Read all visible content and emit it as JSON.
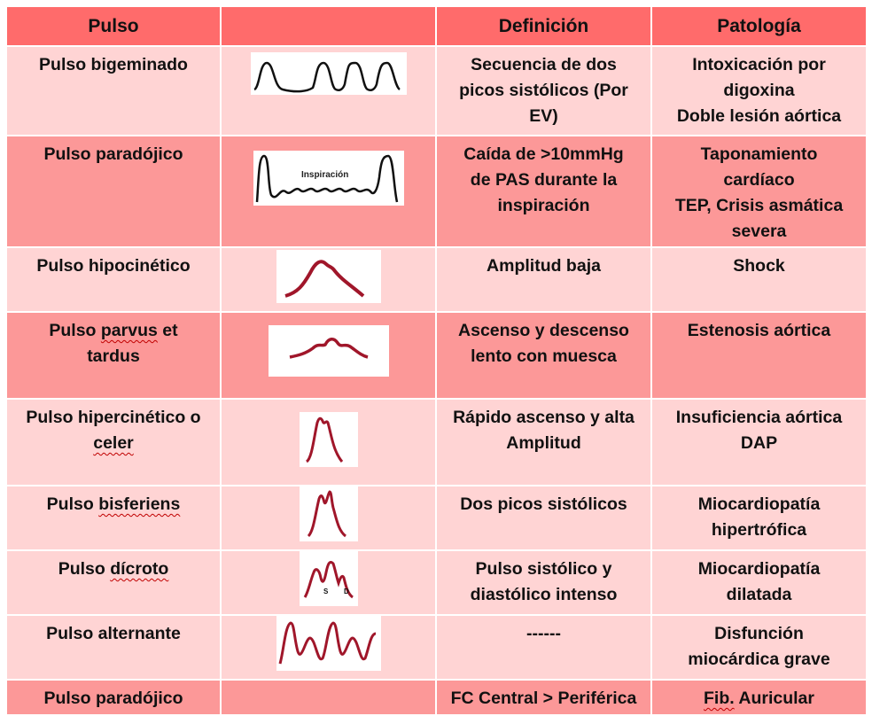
{
  "table": {
    "headers": [
      "Pulso",
      "",
      "Definición",
      "Patología"
    ],
    "rows": [
      {
        "name": "Pulso bigeminado",
        "waveform": "bigeminal-wave",
        "definition": "Secuencia de dos\npicos sistólicos (Por\nEV)",
        "pathology": "Intoxicación por\ndigoxina\nDoble lesión aórtica"
      },
      {
        "name": "Pulso paradójico",
        "waveform": "paradoxical-wave",
        "waveform_label": "Inspiración",
        "definition": "Caída de >10mmHg\nde PAS durante la\ninspiración",
        "pathology": "Taponamiento\ncardíaco\nTEP, Crisis asmática\nsevera"
      },
      {
        "name": "Pulso hipocinético",
        "waveform": "hypokinetic-wave",
        "definition": "Amplitud baja",
        "pathology": "Shock"
      },
      {
        "name_parts": [
          "Pulso ",
          "parvus",
          " et\ntardus"
        ],
        "waveform": "parvus-tardus-wave",
        "definition": "Ascenso y descenso\nlento con muesca",
        "pathology": "Estenosis aórtica"
      },
      {
        "name_parts": [
          "Pulso hipercinético o\n",
          "celer",
          ""
        ],
        "waveform": "hyperkinetic-wave",
        "definition": "Rápido ascenso y alta\nAmplitud",
        "pathology": "Insuficiencia aórtica\nDAP"
      },
      {
        "name_parts": [
          "Pulso ",
          "bisferiens",
          ""
        ],
        "waveform": "bisferiens-wave",
        "definition": "Dos picos sistólicos",
        "pathology": "Miocardiopatía\nhipertrófica"
      },
      {
        "name_parts": [
          "Pulso ",
          "dícroto",
          ""
        ],
        "waveform": "dicrotic-wave",
        "waveform_labels": [
          "S",
          "D"
        ],
        "definition": "Pulso sistólico y\ndiastólico intenso",
        "pathology": "Miocardiopatía\ndilatada"
      },
      {
        "name": "Pulso alternante",
        "waveform": "alternans-wave",
        "definition": "------",
        "pathology": "Disfunción\nmiocárdica grave"
      },
      {
        "name": "Pulso paradójico",
        "waveform": "",
        "definition": "FC Central > Periférica",
        "pathology_parts": [
          "",
          "Fib.",
          " Auricular"
        ]
      }
    ]
  },
  "colors": {
    "header": "#ff6b6b",
    "row_light": "#ffd4d4",
    "row_dark": "#fc9898",
    "wave_black": "#111111",
    "wave_red": "#a0162a"
  }
}
